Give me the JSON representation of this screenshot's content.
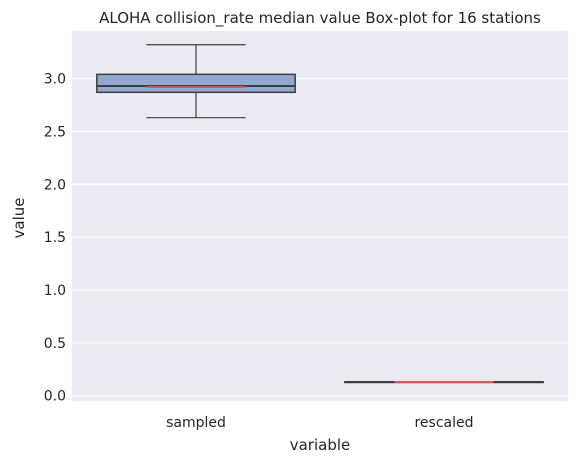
{
  "chart_data": {
    "type": "box",
    "title": "ALOHA collision_rate median value Box-plot for 16 stations",
    "xlabel": "variable",
    "ylabel": "value",
    "categories": [
      "sampled",
      "rescaled"
    ],
    "ylim": [
      -0.05,
      3.45
    ],
    "yticks": [
      0.0,
      0.5,
      1.0,
      1.5,
      2.0,
      2.5,
      3.0
    ],
    "ytick_labels": [
      "0.0",
      "0.5",
      "1.0",
      "1.5",
      "2.0",
      "2.5",
      "3.0"
    ],
    "grid": true,
    "boxes": [
      {
        "category": "sampled",
        "whisker_low": 2.63,
        "q1": 2.87,
        "median": 2.93,
        "mean": 2.92,
        "q3": 3.04,
        "whisker_high": 3.32
      },
      {
        "category": "rescaled",
        "whisker_low": 0.13,
        "q1": 0.13,
        "median": 0.13,
        "mean": 0.13,
        "q3": 0.13,
        "whisker_high": 0.13
      }
    ],
    "colors": {
      "background": "#eaeaf2",
      "grid": "#ffffff",
      "box_fill": "#92a8cf",
      "box_edge": "#3f3f3f",
      "mean_line": "#d9534f"
    }
  }
}
